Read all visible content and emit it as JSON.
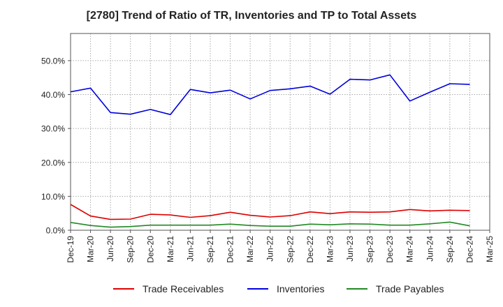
{
  "chart_data": {
    "type": "line",
    "title": "[2780]  Trend of Ratio of TR, Inventories and TP to Total Assets",
    "xlabel": "",
    "ylabel": "",
    "x": [
      "Dec-19",
      "Mar-20",
      "Jun-20",
      "Sep-20",
      "Dec-20",
      "Mar-21",
      "Jun-21",
      "Sep-21",
      "Dec-21",
      "Mar-22",
      "Jun-22",
      "Sep-22",
      "Dec-22",
      "Mar-23",
      "Jun-23",
      "Sep-23",
      "Dec-23",
      "Mar-24",
      "Jun-24",
      "Sep-24",
      "Dec-24"
    ],
    "x_ticks": [
      "Dec-19",
      "Mar-20",
      "Jun-20",
      "Sep-20",
      "Dec-20",
      "Mar-21",
      "Jun-21",
      "Sep-21",
      "Dec-21",
      "Mar-22",
      "Jun-22",
      "Sep-22",
      "Dec-22",
      "Mar-23",
      "Jun-23",
      "Sep-23",
      "Dec-23",
      "Mar-24",
      "Jun-24",
      "Sep-24",
      "Dec-24",
      "Mar-25"
    ],
    "ylim": [
      0,
      0.58
    ],
    "y_ticks": [
      0,
      0.1,
      0.2,
      0.3,
      0.4,
      0.5
    ],
    "y_tick_labels": [
      "0.0%",
      "10.0%",
      "20.0%",
      "30.0%",
      "40.0%",
      "50.0%"
    ],
    "grid": true,
    "legend_position": "bottom",
    "series": [
      {
        "name": "Trade Receivables",
        "color": "#dd0000",
        "values": [
          0.076,
          0.042,
          0.032,
          0.033,
          0.047,
          0.045,
          0.038,
          0.043,
          0.053,
          0.044,
          0.039,
          0.043,
          0.054,
          0.049,
          0.054,
          0.053,
          0.054,
          0.061,
          0.057,
          0.059,
          0.058
        ]
      },
      {
        "name": "Inventories",
        "color": "#0000dd",
        "values": [
          0.408,
          0.419,
          0.347,
          0.342,
          0.356,
          0.341,
          0.415,
          0.405,
          0.413,
          0.387,
          0.412,
          0.417,
          0.425,
          0.401,
          0.445,
          0.443,
          0.458,
          0.381,
          0.407,
          0.432,
          0.43
        ]
      },
      {
        "name": "Trade Payables",
        "color": "#228822",
        "values": [
          0.023,
          0.014,
          0.009,
          0.011,
          0.015,
          0.015,
          0.015,
          0.015,
          0.018,
          0.014,
          0.012,
          0.012,
          0.018,
          0.016,
          0.019,
          0.018,
          0.015,
          0.015,
          0.019,
          0.024,
          0.013
        ]
      }
    ]
  }
}
